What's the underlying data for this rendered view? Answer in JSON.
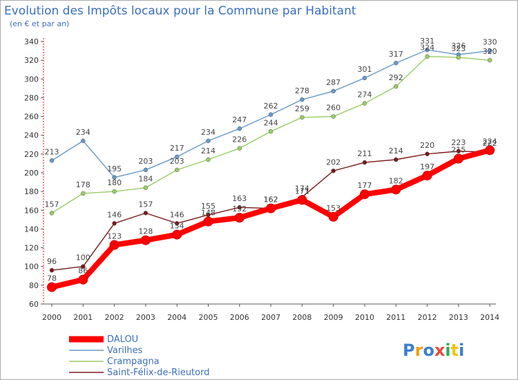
{
  "chart_data": {
    "type": "line",
    "title": "Evolution des Impôts locaux pour la Commune par Habitant",
    "subtitle": "(en € et par an)",
    "x": [
      "2000",
      "2001",
      "2002",
      "2003",
      "2004",
      "2005",
      "2006",
      "2007",
      "2008",
      "2009",
      "2010",
      "2011",
      "2012",
      "2013",
      "2014"
    ],
    "ylim": [
      60,
      340
    ],
    "yticks": [
      60,
      80,
      100,
      120,
      140,
      160,
      180,
      200,
      220,
      240,
      260,
      280,
      300,
      320,
      340
    ],
    "grid": false,
    "legend_position": "bottom-left",
    "series": [
      {
        "name": "DALOU",
        "color": "#ff0000",
        "values": [
          78,
          86,
          123,
          128,
          134,
          148,
          152,
          162,
          171,
          153,
          177,
          182,
          197,
          215,
          224
        ]
      },
      {
        "name": "Varilhes",
        "color": "#6699cc",
        "values": [
          213,
          234,
          195,
          203,
          217,
          234,
          247,
          262,
          278,
          287,
          301,
          317,
          331,
          326,
          330
        ]
      },
      {
        "name": "Crampagna",
        "color": "#99cc66",
        "values": [
          157,
          178,
          180,
          184,
          203,
          214,
          226,
          244,
          259,
          260,
          274,
          292,
          324,
          323,
          320
        ]
      },
      {
        "name": "Saint-Félix-de-Rieutord",
        "color": "#7a1a1a",
        "values": [
          96,
          100,
          146,
          157,
          146,
          155,
          163,
          162,
          174,
          202,
          211,
          214,
          220,
          223,
          222
        ]
      }
    ]
  },
  "logo": {
    "text": "Proxiti"
  }
}
